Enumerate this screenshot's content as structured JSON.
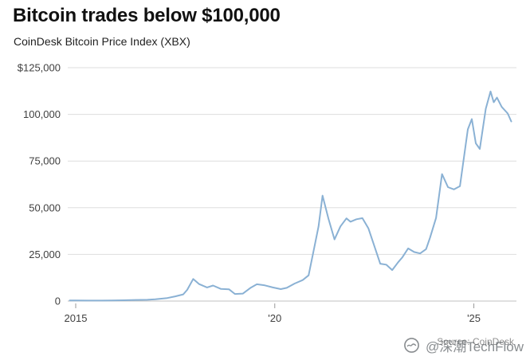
{
  "chart_data": {
    "type": "line",
    "title": "Bitcoin trades below $100,000",
    "subtitle": "CoinDesk Bitcoin Price Index (XBX)",
    "source": "Source: CoinDesk",
    "watermark": "@深潮TechFlow",
    "xlabel": "",
    "ylabel": "",
    "ylim": [
      0,
      125000
    ],
    "xlim": [
      2014.8,
      2025.95
    ],
    "grid": true,
    "legend_position": "none",
    "line_color": "#8ab1d4",
    "grid_color": "#dddddd",
    "zero_line_color": "#c2c2c2",
    "axis_text_color": "#404040",
    "tick_mark_color": "#999999",
    "y_ticks": [
      {
        "label": "$125,000",
        "value": 125000
      },
      {
        "label": "100,000",
        "value": 100000
      },
      {
        "label": "75,000",
        "value": 75000
      },
      {
        "label": "50,000",
        "value": 50000
      },
      {
        "label": "25,000",
        "value": 25000
      },
      {
        "label": "0",
        "value": 0
      }
    ],
    "x_ticks": [
      {
        "label": "2015",
        "value": 2015
      },
      {
        "label": "'20",
        "value": 2020
      },
      {
        "label": "'25",
        "value": 2025
      }
    ],
    "series": [
      {
        "name": "CoinDesk Bitcoin Price Index (XBX)",
        "points": [
          [
            2014.85,
            320
          ],
          [
            2015.0,
            290
          ],
          [
            2015.3,
            245
          ],
          [
            2015.6,
            270
          ],
          [
            2015.9,
            360
          ],
          [
            2016.2,
            420
          ],
          [
            2016.5,
            580
          ],
          [
            2016.8,
            700
          ],
          [
            2017.0,
            1000
          ],
          [
            2017.3,
            1600
          ],
          [
            2017.5,
            2500
          ],
          [
            2017.7,
            3600
          ],
          [
            2017.8,
            6000
          ],
          [
            2017.95,
            11800
          ],
          [
            2018.1,
            9100
          ],
          [
            2018.3,
            7300
          ],
          [
            2018.45,
            8300
          ],
          [
            2018.65,
            6500
          ],
          [
            2018.85,
            6300
          ],
          [
            2019.0,
            3800
          ],
          [
            2019.2,
            4000
          ],
          [
            2019.4,
            7200
          ],
          [
            2019.55,
            9000
          ],
          [
            2019.75,
            8400
          ],
          [
            2019.95,
            7300
          ],
          [
            2020.15,
            6400
          ],
          [
            2020.3,
            7100
          ],
          [
            2020.5,
            9400
          ],
          [
            2020.7,
            11200
          ],
          [
            2020.85,
            13800
          ],
          [
            2021.0,
            29500
          ],
          [
            2021.1,
            40000
          ],
          [
            2021.2,
            56500
          ],
          [
            2021.35,
            44000
          ],
          [
            2021.5,
            33000
          ],
          [
            2021.65,
            40000
          ],
          [
            2021.8,
            44300
          ],
          [
            2021.9,
            42500
          ],
          [
            2022.05,
            43800
          ],
          [
            2022.2,
            44400
          ],
          [
            2022.35,
            39000
          ],
          [
            2022.5,
            29500
          ],
          [
            2022.65,
            20000
          ],
          [
            2022.8,
            19500
          ],
          [
            2022.95,
            16600
          ],
          [
            2023.1,
            20800
          ],
          [
            2023.2,
            23300
          ],
          [
            2023.35,
            28200
          ],
          [
            2023.5,
            26300
          ],
          [
            2023.65,
            25500
          ],
          [
            2023.8,
            27800
          ],
          [
            2023.9,
            34000
          ],
          [
            2024.05,
            44500
          ],
          [
            2024.2,
            68000
          ],
          [
            2024.35,
            61000
          ],
          [
            2024.5,
            59800
          ],
          [
            2024.65,
            61500
          ],
          [
            2024.85,
            92000
          ],
          [
            2024.95,
            97500
          ],
          [
            2025.05,
            84500
          ],
          [
            2025.15,
            81500
          ],
          [
            2025.3,
            103000
          ],
          [
            2025.42,
            112300
          ],
          [
            2025.5,
            106500
          ],
          [
            2025.58,
            109000
          ],
          [
            2025.7,
            104000
          ],
          [
            2025.85,
            100500
          ],
          [
            2025.94,
            96200
          ]
        ]
      }
    ]
  }
}
